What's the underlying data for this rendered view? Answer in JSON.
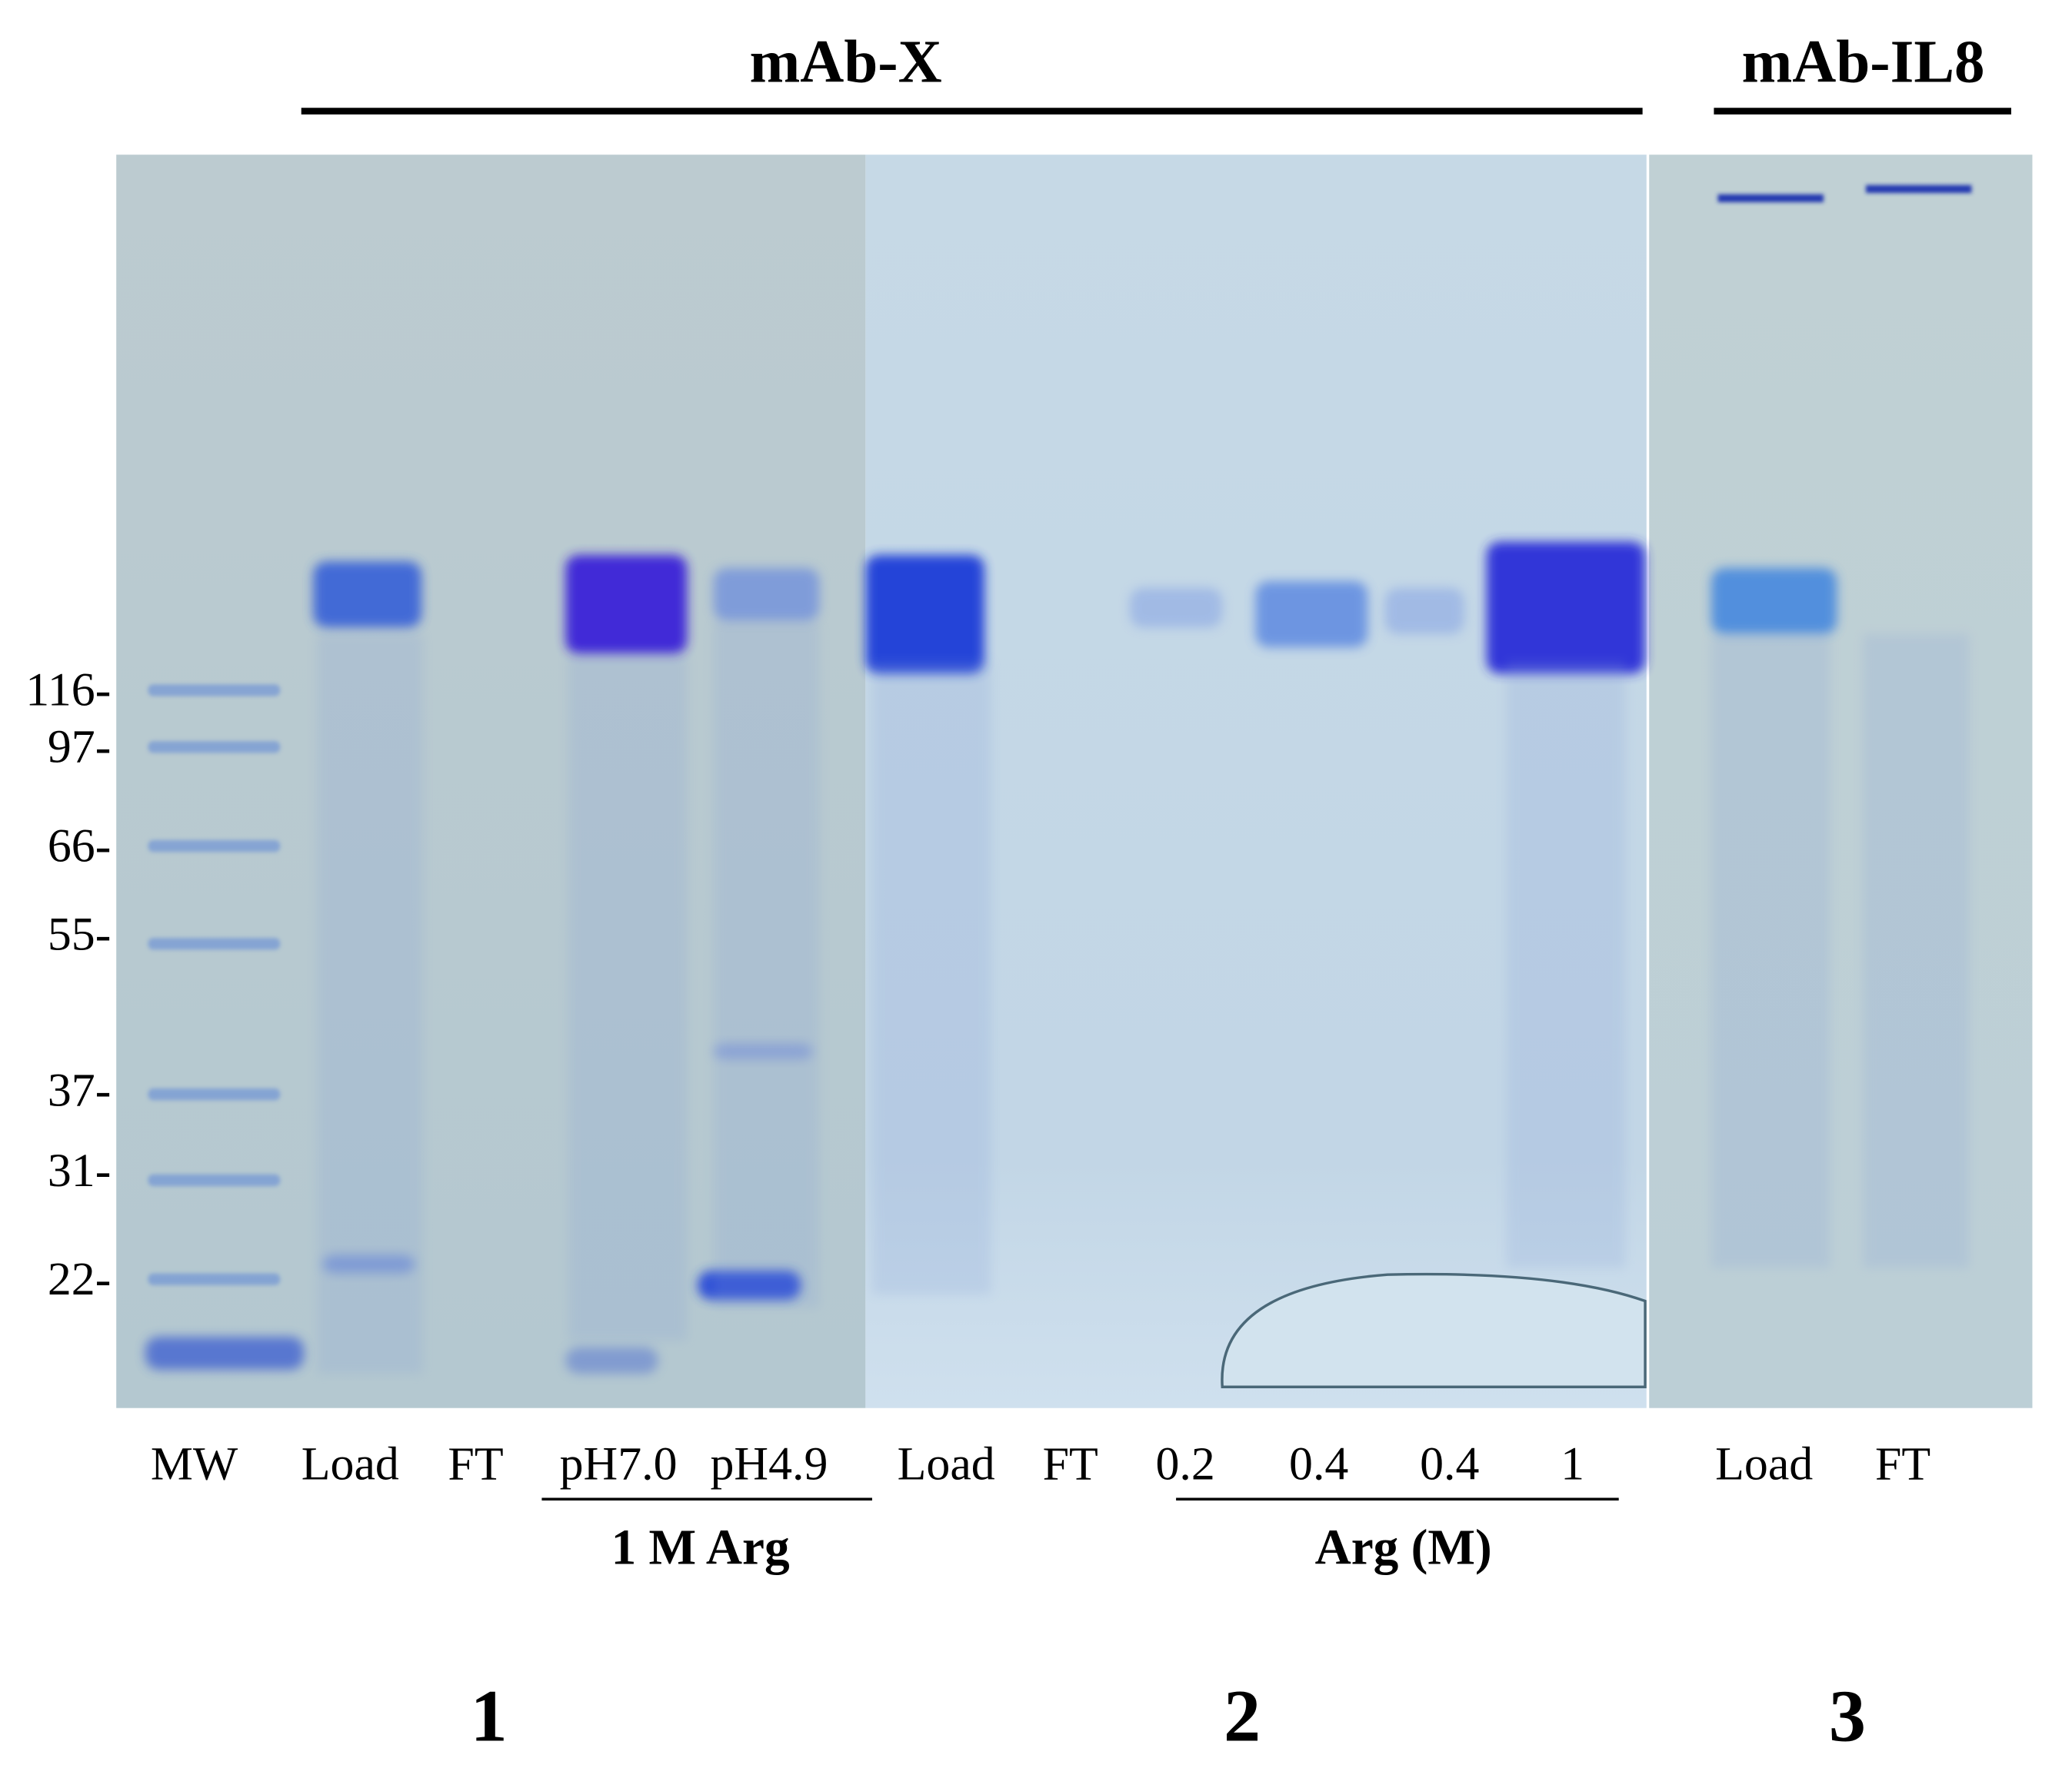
{
  "header": {
    "left_title": "mAb-X",
    "right_title": "mAb-IL8"
  },
  "markers": [
    "116-",
    "97-",
    "66-",
    "55-",
    "37-",
    "31-",
    "22-"
  ],
  "lanes": [
    "MW",
    "Load",
    "FT",
    "pH7.0",
    "pH4.9",
    "Load",
    "FT",
    "0.2",
    "0.4",
    "0.4",
    "1",
    "Load",
    "FT"
  ],
  "groups": [
    "1 M Arg",
    "Arg (M)"
  ],
  "panels": [
    "1",
    "2",
    "3"
  ]
}
